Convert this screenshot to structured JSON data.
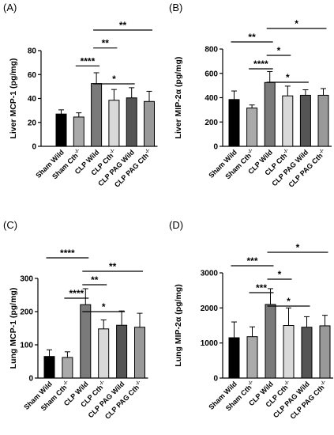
{
  "chart_data": [
    {
      "panel_label": "(A)",
      "type": "bar",
      "ylabel": "Liver MCP-1 (pg/mg)",
      "ylim": [
        0,
        80
      ],
      "yticks": [
        0,
        20,
        40,
        60,
        80
      ],
      "categories": [
        "Sham Wild",
        "Sham Cth",
        "CLP Wild",
        "CLP Cth",
        "CLP PAG Wild",
        "CLP PAG Cth"
      ],
      "category_superscripts": [
        "",
        "-/-",
        "",
        "-/-",
        "",
        "-/-"
      ],
      "values": [
        27,
        24.5,
        52.5,
        38.5,
        40.5,
        37.5
      ],
      "errors": [
        3.5,
        3.5,
        9,
        9,
        8.5,
        8.5
      ],
      "colors": [
        "#000000",
        "#aaaaaa",
        "#7a7a7a",
        "#d9d9d9",
        "#555555",
        "#999999"
      ],
      "significance": [
        {
          "from": 3,
          "to": 6,
          "label": "**"
        },
        {
          "from": 3,
          "to": 4,
          "label": "**"
        },
        {
          "from": 2,
          "to": 3,
          "label": "****"
        },
        {
          "from": 3,
          "to": 5,
          "label": "*"
        }
      ]
    },
    {
      "panel_label": "(B)",
      "type": "bar",
      "ylabel": "Liver MIP-2α (pg/mg)",
      "ylim": [
        0,
        800
      ],
      "yticks": [
        0,
        200,
        400,
        600,
        800
      ],
      "categories": [
        "Sham Wild",
        "Sham Cth",
        "CLP Wild",
        "CLP Cth",
        "CLP PAG Wild",
        "CLP PAG Cth"
      ],
      "category_superscripts": [
        "",
        "-/-",
        "",
        "-/-",
        "",
        "-/-"
      ],
      "values": [
        385,
        315,
        525,
        415,
        420,
        420
      ],
      "errors": [
        70,
        25,
        90,
        80,
        45,
        55
      ],
      "colors": [
        "#000000",
        "#aaaaaa",
        "#7a7a7a",
        "#d9d9d9",
        "#555555",
        "#999999"
      ],
      "significance": [
        {
          "from": 3,
          "to": 6,
          "label": "*"
        },
        {
          "from": 1,
          "to": 3,
          "label": "**"
        },
        {
          "from": 3,
          "to": 4,
          "label": "*"
        },
        {
          "from": 2,
          "to": 3,
          "label": "****"
        },
        {
          "from": 3,
          "to": 5,
          "label": "*"
        }
      ]
    },
    {
      "panel_label": "(C)",
      "type": "bar",
      "ylabel": "Lung MCP-1 (pg/mg)",
      "ylim": [
        0,
        300
      ],
      "yticks": [
        0,
        100,
        200,
        300
      ],
      "categories": [
        "Sham Wild",
        "Sham Cth",
        "CLP Wild",
        "CLP Cth",
        "CLP PAG Wild",
        "CLP PAG Cth"
      ],
      "category_superscripts": [
        "",
        "-/-",
        "",
        "-/-",
        "",
        "-/-"
      ],
      "values": [
        65,
        62,
        221,
        148,
        159,
        153
      ],
      "errors": [
        20,
        17,
        48,
        27,
        43,
        42
      ],
      "colors": [
        "#000000",
        "#aaaaaa",
        "#7a7a7a",
        "#d9d9d9",
        "#555555",
        "#999999"
      ],
      "significance": [
        {
          "from": 1,
          "to": 3,
          "label": "****"
        },
        {
          "from": 3,
          "to": 6,
          "label": "**"
        },
        {
          "from": 3,
          "to": 4,
          "label": "**"
        },
        {
          "from": 2,
          "to": 3,
          "label": "****"
        },
        {
          "from": 3,
          "to": 5,
          "label": "*"
        }
      ]
    },
    {
      "panel_label": "(D)",
      "type": "bar",
      "ylabel": "Lung MIP-2α (pg/mg)",
      "ylim": [
        0,
        3000
      ],
      "yticks": [
        0,
        1000,
        2000,
        3000
      ],
      "categories": [
        "Sham Wild",
        "Sham Cth",
        "CLP Wild",
        "CLP Cth",
        "CLP PAG Wild",
        "CLP PAG Cth"
      ],
      "category_superscripts": [
        "",
        "-/-",
        "",
        "-/-",
        "",
        "-/-"
      ],
      "values": [
        1150,
        1180,
        2100,
        1500,
        1450,
        1490
      ],
      "errors": [
        450,
        280,
        450,
        500,
        300,
        300
      ],
      "colors": [
        "#000000",
        "#aaaaaa",
        "#7a7a7a",
        "#d9d9d9",
        "#555555",
        "#999999"
      ],
      "significance": [
        {
          "from": 3,
          "to": 6,
          "label": "*"
        },
        {
          "from": 1,
          "to": 3,
          "label": "***"
        },
        {
          "from": 3,
          "to": 4,
          "label": "*"
        },
        {
          "from": 2,
          "to": 3,
          "label": "***"
        },
        {
          "from": 3,
          "to": 5,
          "label": "*"
        }
      ]
    }
  ]
}
